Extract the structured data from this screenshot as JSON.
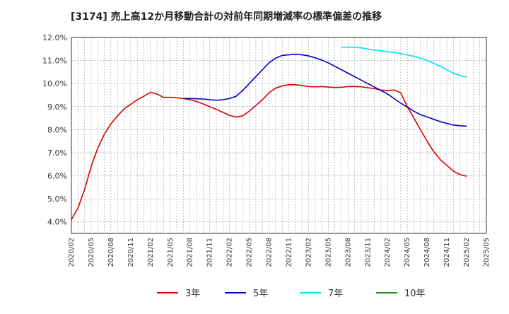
{
  "chart_data": {
    "type": "line",
    "title": "[3174]  売上高12か月移動合計の対前年同期増減率の標準偏差の推移",
    "xlabel": "",
    "ylabel": "",
    "ylim": [
      3.5,
      12.0
    ],
    "yticks": [
      4.0,
      5.0,
      6.0,
      7.0,
      8.0,
      9.0,
      10.0,
      11.0,
      12.0
    ],
    "ytick_labels": [
      "4.0%",
      "5.0%",
      "6.0%",
      "7.0%",
      "8.0%",
      "9.0%",
      "10.0%",
      "11.0%",
      "12.0%"
    ],
    "xtick_labels": [
      "2020/02",
      "2020/05",
      "2020/08",
      "2020/11",
      "2021/02",
      "2021/05",
      "2021/08",
      "2021/11",
      "2022/02",
      "2022/05",
      "2022/08",
      "2022/11",
      "2023/02",
      "2023/05",
      "2023/08",
      "2023/11",
      "2024/02",
      "2024/05",
      "2024/08",
      "2024/11",
      "2025/02",
      "2025/05"
    ],
    "x_start": "2020/02",
    "x_end": "2025/05",
    "grid": true,
    "legend_position": "bottom",
    "series": [
      {
        "name": "3年",
        "color": "#dd0000",
        "points": [
          [
            "2020/02",
            4.1
          ],
          [
            "2020/03",
            4.6
          ],
          [
            "2020/04",
            5.4
          ],
          [
            "2020/05",
            6.4
          ],
          [
            "2020/06",
            7.2
          ],
          [
            "2020/07",
            7.8
          ],
          [
            "2020/08",
            8.25
          ],
          [
            "2020/09",
            8.6
          ],
          [
            "2020/10",
            8.9
          ],
          [
            "2020/11",
            9.1
          ],
          [
            "2020/12",
            9.3
          ],
          [
            "2021/01",
            9.45
          ],
          [
            "2021/02",
            9.62
          ],
          [
            "2021/03",
            9.55
          ],
          [
            "2021/04",
            9.4
          ],
          [
            "2021/05",
            9.4
          ],
          [
            "2021/06",
            9.38
          ],
          [
            "2021/07",
            9.35
          ],
          [
            "2021/08",
            9.3
          ],
          [
            "2021/09",
            9.22
          ],
          [
            "2021/10",
            9.12
          ],
          [
            "2021/11",
            9.0
          ],
          [
            "2021/12",
            8.88
          ],
          [
            "2022/01",
            8.75
          ],
          [
            "2022/02",
            8.62
          ],
          [
            "2022/03",
            8.55
          ],
          [
            "2022/04",
            8.6
          ],
          [
            "2022/05",
            8.8
          ],
          [
            "2022/06",
            9.05
          ],
          [
            "2022/07",
            9.3
          ],
          [
            "2022/08",
            9.6
          ],
          [
            "2022/09",
            9.8
          ],
          [
            "2022/10",
            9.9
          ],
          [
            "2022/11",
            9.95
          ],
          [
            "2022/12",
            9.95
          ],
          [
            "2023/01",
            9.92
          ],
          [
            "2023/02",
            9.87
          ],
          [
            "2023/03",
            9.86
          ],
          [
            "2023/04",
            9.87
          ],
          [
            "2023/05",
            9.85
          ],
          [
            "2023/06",
            9.83
          ],
          [
            "2023/07",
            9.84
          ],
          [
            "2023/08",
            9.87
          ],
          [
            "2023/09",
            9.87
          ],
          [
            "2023/10",
            9.86
          ],
          [
            "2023/11",
            9.82
          ],
          [
            "2023/12",
            9.78
          ],
          [
            "2024/01",
            9.72
          ],
          [
            "2024/02",
            9.7
          ],
          [
            "2024/03",
            9.72
          ],
          [
            "2024/04",
            9.6
          ],
          [
            "2024/05",
            9.0
          ],
          [
            "2024/06",
            8.5
          ],
          [
            "2024/07",
            8.0
          ],
          [
            "2024/08",
            7.5
          ],
          [
            "2024/09",
            7.05
          ],
          [
            "2024/10",
            6.7
          ],
          [
            "2024/11",
            6.45
          ],
          [
            "2024/12",
            6.2
          ],
          [
            "2025/01",
            6.05
          ],
          [
            "2025/02",
            5.98
          ]
        ]
      },
      {
        "name": "5年",
        "color": "#0000cc",
        "points": [
          [
            "2021/07",
            9.35
          ],
          [
            "2021/08",
            9.35
          ],
          [
            "2021/09",
            9.34
          ],
          [
            "2021/10",
            9.33
          ],
          [
            "2021/11",
            9.3
          ],
          [
            "2021/12",
            9.28
          ],
          [
            "2022/01",
            9.3
          ],
          [
            "2022/02",
            9.35
          ],
          [
            "2022/03",
            9.45
          ],
          [
            "2022/04",
            9.7
          ],
          [
            "2022/05",
            10.0
          ],
          [
            "2022/06",
            10.3
          ],
          [
            "2022/07",
            10.6
          ],
          [
            "2022/08",
            10.9
          ],
          [
            "2022/09",
            11.1
          ],
          [
            "2022/10",
            11.22
          ],
          [
            "2022/11",
            11.25
          ],
          [
            "2022/12",
            11.27
          ],
          [
            "2023/01",
            11.25
          ],
          [
            "2023/02",
            11.2
          ],
          [
            "2023/03",
            11.12
          ],
          [
            "2023/04",
            11.02
          ],
          [
            "2023/05",
            10.9
          ],
          [
            "2023/06",
            10.75
          ],
          [
            "2023/07",
            10.6
          ],
          [
            "2023/08",
            10.45
          ],
          [
            "2023/09",
            10.3
          ],
          [
            "2023/10",
            10.15
          ],
          [
            "2023/11",
            10.0
          ],
          [
            "2023/12",
            9.85
          ],
          [
            "2024/01",
            9.7
          ],
          [
            "2024/02",
            9.55
          ],
          [
            "2024/03",
            9.35
          ],
          [
            "2024/04",
            9.15
          ],
          [
            "2024/05",
            8.98
          ],
          [
            "2024/06",
            8.8
          ],
          [
            "2024/07",
            8.65
          ],
          [
            "2024/08",
            8.55
          ],
          [
            "2024/09",
            8.45
          ],
          [
            "2024/10",
            8.35
          ],
          [
            "2024/11",
            8.27
          ],
          [
            "2024/12",
            8.2
          ],
          [
            "2025/01",
            8.17
          ],
          [
            "2025/02",
            8.15
          ]
        ]
      },
      {
        "name": "7年",
        "color": "#00e5ee",
        "points": [
          [
            "2023/07",
            11.58
          ],
          [
            "2023/08",
            11.58
          ],
          [
            "2023/09",
            11.57
          ],
          [
            "2023/10",
            11.55
          ],
          [
            "2023/11",
            11.5
          ],
          [
            "2023/12",
            11.45
          ],
          [
            "2024/01",
            11.42
          ],
          [
            "2024/02",
            11.38
          ],
          [
            "2024/03",
            11.35
          ],
          [
            "2024/04",
            11.3
          ],
          [
            "2024/05",
            11.25
          ],
          [
            "2024/06",
            11.18
          ],
          [
            "2024/07",
            11.1
          ],
          [
            "2024/08",
            11.0
          ],
          [
            "2024/09",
            10.88
          ],
          [
            "2024/10",
            10.75
          ],
          [
            "2024/11",
            10.6
          ],
          [
            "2024/12",
            10.45
          ],
          [
            "2025/01",
            10.35
          ],
          [
            "2025/02",
            10.28
          ]
        ]
      },
      {
        "name": "10年",
        "color": "#228b22",
        "points": []
      }
    ]
  }
}
